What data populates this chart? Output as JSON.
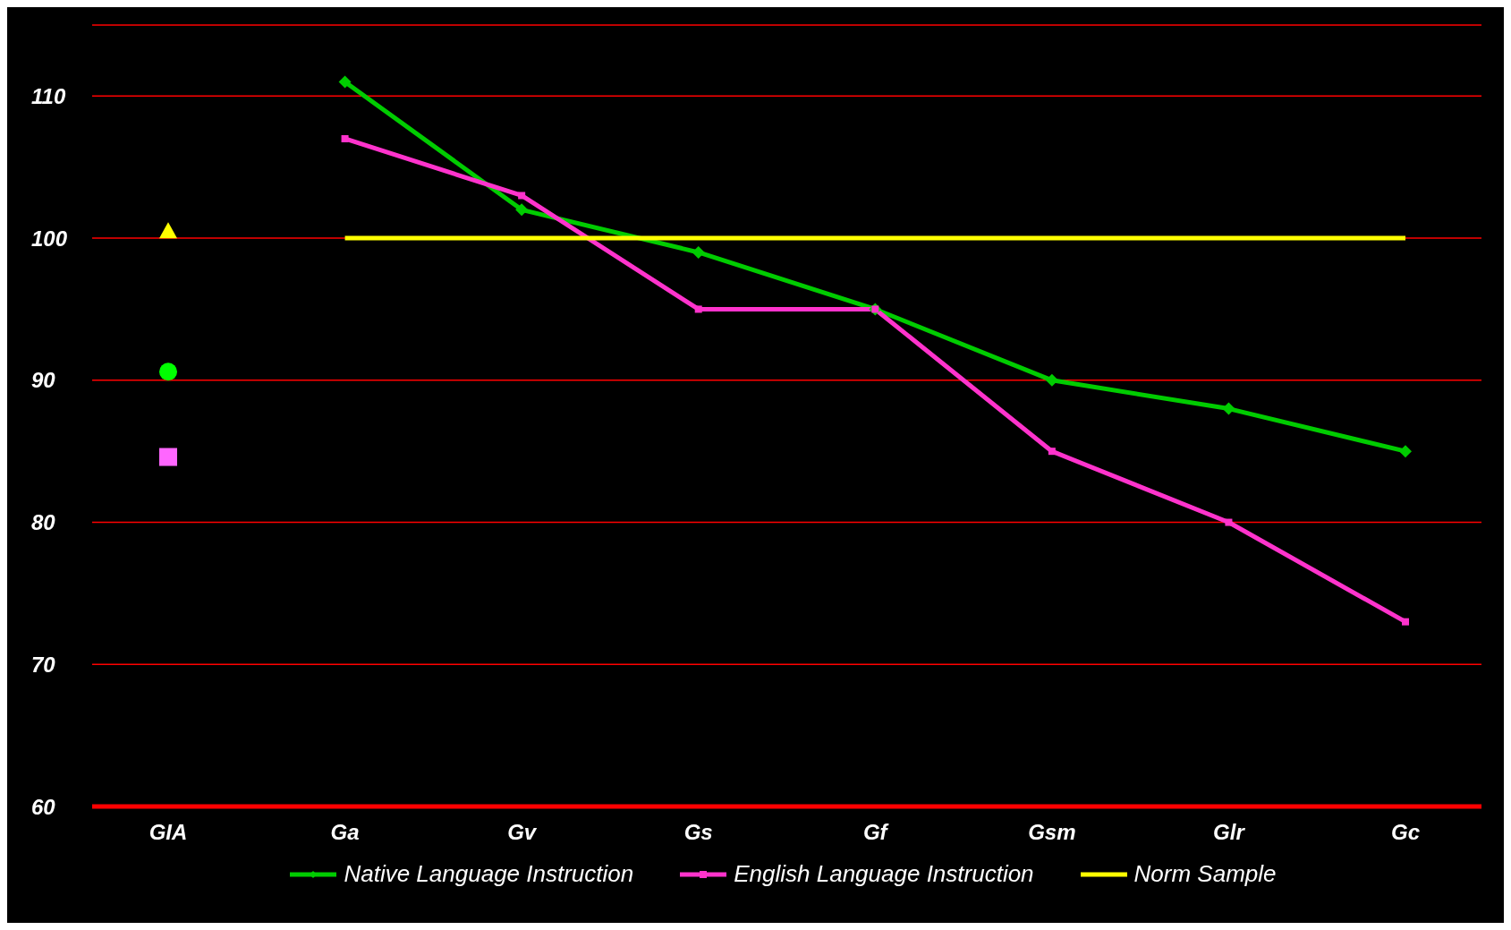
{
  "chart_data": {
    "type": "line",
    "categories": [
      "GIA",
      "Ga",
      "Gv",
      "Gs",
      "Gf",
      "Gsm",
      "Glr",
      "Gc"
    ],
    "series": [
      {
        "name": "Native Language Instruction",
        "color": "#00cc00",
        "marker": "diamond",
        "values": [
          null,
          111,
          102,
          99,
          95,
          90,
          88,
          85
        ]
      },
      {
        "name": "English Language Instruction",
        "color": "#ff33cc",
        "marker": "square",
        "values": [
          null,
          107,
          103,
          95,
          95,
          85,
          80,
          73
        ]
      },
      {
        "name": "Norm Sample",
        "color": "#ffff00",
        "marker": "none",
        "values": [
          null,
          100,
          100,
          100,
          100,
          100,
          100,
          100
        ]
      },
      {
        "type": "scatter",
        "color": "#ffff00",
        "marker": "triangle",
        "x": [
          "GIA"
        ],
        "values": [
          100.5
        ]
      },
      {
        "type": "scatter",
        "color": "#00ff00",
        "marker": "circle",
        "x": [
          "GIA"
        ],
        "values": [
          90.6
        ]
      },
      {
        "type": "scatter",
        "color": "#ff66ff",
        "marker": "square",
        "x": [
          "GIA"
        ],
        "values": [
          84.6
        ]
      }
    ],
    "ylim": [
      60,
      115
    ],
    "yticks": [
      60,
      70,
      80,
      90,
      100,
      110
    ],
    "grid": "y",
    "legend": "bottom"
  }
}
